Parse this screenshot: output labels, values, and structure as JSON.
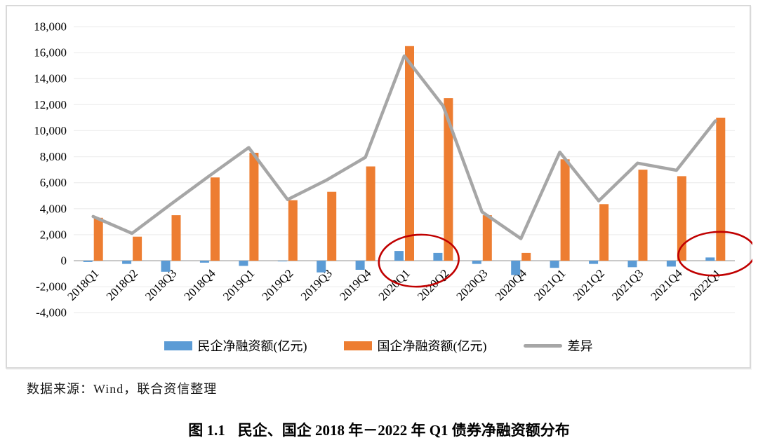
{
  "chart_data": {
    "type": "bar",
    "subtype": "bar-and-line-combo",
    "categories": [
      "2018Q1",
      "2018Q2",
      "2018Q3",
      "2018Q4",
      "2019Q1",
      "2019Q2",
      "2019Q3",
      "2019Q4",
      "2020Q1",
      "2020Q2",
      "2020Q3",
      "2020Q4",
      "2021Q1",
      "2021Q2",
      "2021Q3",
      "2021Q4",
      "2022Q1"
    ],
    "series": [
      {
        "name": "民企净融资额(亿元)",
        "type": "bar",
        "color": "#5B9BD5",
        "values": [
          -100,
          -250,
          -850,
          -150,
          -400,
          -50,
          -900,
          -700,
          750,
          600,
          -250,
          -1100,
          -550,
          -250,
          -500,
          -450,
          250
        ]
      },
      {
        "name": "国企净融资额(亿元)",
        "type": "bar",
        "color": "#ED7D31",
        "values": [
          3300,
          1850,
          3500,
          6400,
          8300,
          4650,
          5300,
          7250,
          16500,
          12500,
          3500,
          600,
          7800,
          4350,
          7000,
          6500,
          11000
        ]
      },
      {
        "name": "差异",
        "type": "line",
        "color": "#A6A6A6",
        "values": [
          3400,
          2100,
          4350,
          6550,
          8700,
          4700,
          6200,
          7950,
          15750,
          11900,
          3750,
          1700,
          8350,
          4600,
          7500,
          6950,
          10750
        ]
      }
    ],
    "ylim": [
      -4000,
      18000
    ],
    "ytick_step": 2000,
    "xlabel": "",
    "ylabel": "",
    "title": "",
    "grid": true,
    "legend_position": "bottom",
    "annotations": [
      {
        "shape": "ellipse",
        "color": "#C00000",
        "categories": [
          "2020Q1",
          "2020Q2"
        ],
        "note": "circles small blue bars of 2020Q1-2020Q2"
      },
      {
        "shape": "ellipse",
        "color": "#C00000",
        "categories": [
          "2022Q1"
        ],
        "note": "circles small blue bar of 2022Q1"
      }
    ],
    "colors": {
      "gridline": "#EFEFEF",
      "zero_axis": "#C9C9C9",
      "chart_border": "#D9D9D9",
      "annotation_red": "#C00000"
    }
  },
  "legend": {
    "items": [
      {
        "label": "民企净融资额(亿元)"
      },
      {
        "label": "国企净融资额(亿元)"
      },
      {
        "label": "差异"
      }
    ]
  },
  "source_note": "数据来源：Wind，联合资信整理",
  "caption": {
    "figno": "图 1.1",
    "title": "民企、国企 2018 年－2022 年 Q1 债券净融资额分布"
  }
}
